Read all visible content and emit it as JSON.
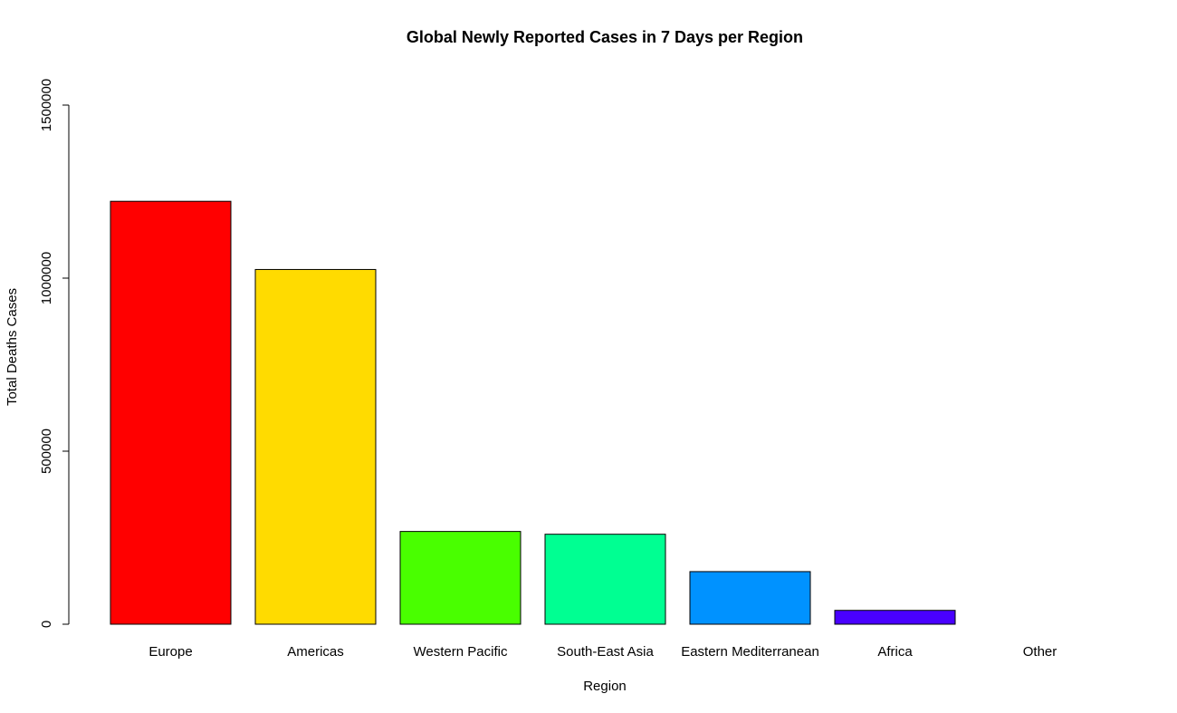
{
  "chart_data": {
    "type": "bar",
    "title": "Global Newly Reported Cases in 7 Days per Region",
    "xlabel": "Region",
    "ylabel": "Total Deaths Cases",
    "categories": [
      "Europe",
      "Americas",
      "Western Pacific",
      "South-East Asia",
      "Eastern Mediterranean",
      "Africa",
      "Other"
    ],
    "values": [
      1222000,
      1025000,
      268000,
      260000,
      152000,
      40000,
      0
    ],
    "colors": [
      "#FF0000",
      "#FFDB00",
      "#49FF00",
      "#00FF92",
      "#0092FF",
      "#4900FF",
      "#FF00DB"
    ],
    "ylim": [
      0,
      1500000
    ],
    "yticks": [
      "0",
      "500000",
      "1000000",
      "1500000"
    ],
    "ytick_values": [
      0,
      500000,
      1000000,
      1500000
    ],
    "grid": false,
    "legend": "none"
  }
}
